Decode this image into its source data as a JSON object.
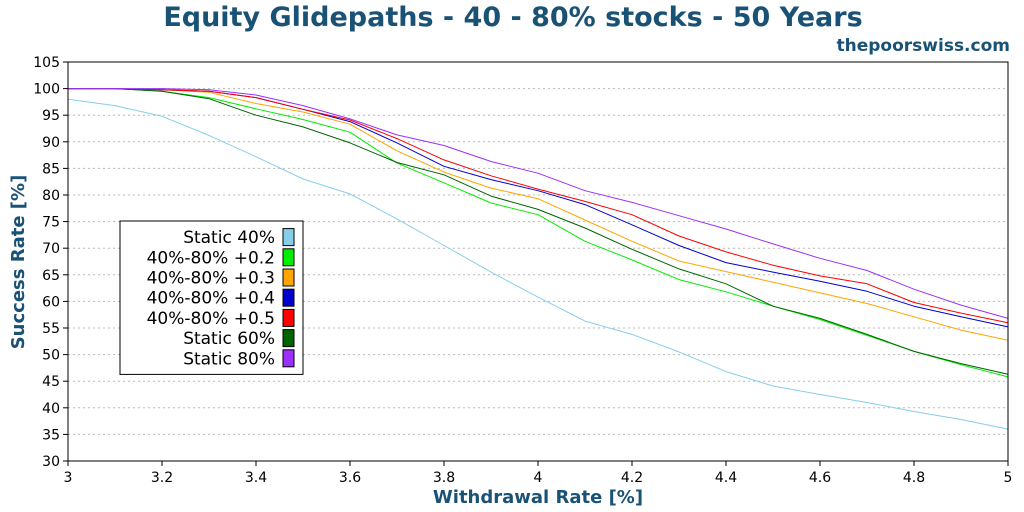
{
  "chart_data": {
    "type": "line",
    "title": "Equity Glidepaths - 40 - 80% stocks - 50 Years",
    "source": "thepoorswiss.com",
    "xlabel": "Withdrawal Rate [%]",
    "ylabel": "Success Rate [%]",
    "xlim": [
      3,
      5
    ],
    "ylim": [
      30,
      105
    ],
    "xticks": [
      3,
      3.2,
      3.4,
      3.6,
      3.8,
      4,
      4.2,
      4.4,
      4.6,
      4.8,
      5
    ],
    "xtick_labels": [
      "3",
      "3.2",
      "3.4",
      "3.6",
      "3.8",
      "4",
      "4.2",
      "4.4",
      "4.6",
      "4.8",
      "5"
    ],
    "yticks": [
      30,
      35,
      40,
      45,
      50,
      55,
      60,
      65,
      70,
      75,
      80,
      85,
      90,
      95,
      100,
      105
    ],
    "ytick_labels": [
      "30",
      "35",
      "40",
      "45",
      "50",
      "55",
      "60",
      "65",
      "70",
      "75",
      "80",
      "85",
      "90",
      "95",
      "100",
      "105"
    ],
    "grid": "horizontal dotted",
    "legend_position": "center-left",
    "x": [
      3.0,
      3.1,
      3.2,
      3.3,
      3.4,
      3.5,
      3.6,
      3.7,
      3.8,
      3.9,
      4.0,
      4.1,
      4.2,
      4.3,
      4.4,
      4.5,
      4.6,
      4.7,
      4.8,
      4.9,
      5.0
    ],
    "series": [
      {
        "name": "Static 40%",
        "color": "#87ceeb",
        "values": [
          98,
          96.8,
          94.8,
          91.2,
          87.2,
          83,
          80.2,
          75.5,
          70.5,
          65.5,
          60.8,
          56.3,
          53.8,
          50.5,
          46.8,
          44.1,
          42.5,
          41,
          39.3,
          37.8,
          36
        ]
      },
      {
        "name": "40%-80% +0.2",
        "color": "#00ee00",
        "values": [
          100,
          100,
          99.5,
          98.3,
          96.2,
          94.2,
          91.8,
          86,
          82.3,
          78.5,
          76.3,
          71.3,
          67.8,
          64.1,
          61.8,
          59.1,
          56.6,
          53.6,
          50.6,
          48.1,
          45.8
        ]
      },
      {
        "name": "40%-80% +0.3",
        "color": "#ffa500",
        "values": [
          100,
          100,
          99.8,
          99.3,
          97.2,
          95.6,
          93.3,
          88.3,
          84.3,
          81.3,
          79.3,
          75.3,
          71.3,
          67.6,
          65.6,
          63.6,
          61.6,
          59.6,
          57.1,
          54.6,
          52.7
        ]
      },
      {
        "name": "40%-80% +0.4",
        "color": "#0000cd",
        "values": [
          100,
          100,
          99.8,
          99.5,
          98.3,
          96.1,
          93.8,
          89.8,
          85.4,
          82.9,
          80.8,
          78.2,
          74.4,
          70.5,
          67.3,
          65.5,
          63.8,
          61.9,
          59.1,
          57.1,
          55.2
        ]
      },
      {
        "name": "40%-80% +0.5",
        "color": "#ff0000",
        "values": [
          100,
          100,
          99.8,
          99.5,
          98.3,
          96.1,
          94.1,
          90.6,
          86.6,
          83.6,
          81.1,
          78.8,
          76.3,
          72.3,
          69.3,
          66.8,
          64.8,
          63.3,
          59.8,
          57.8,
          56
        ]
      },
      {
        "name": "Static 60%",
        "color": "#006400",
        "values": [
          100,
          100,
          99.5,
          98.1,
          95,
          92.8,
          89.8,
          86.1,
          83.8,
          79.8,
          77.3,
          73.8,
          69.8,
          66.1,
          63.3,
          59.1,
          56.8,
          53.8,
          50.6,
          48.3,
          46.3
        ]
      },
      {
        "name": "Static 80%",
        "color": "#9b30ff",
        "values": [
          100,
          100,
          100,
          99.8,
          98.8,
          96.8,
          94.3,
          91.3,
          89.3,
          86.3,
          84.1,
          80.8,
          78.6,
          76.1,
          73.6,
          70.8,
          68.1,
          65.8,
          62.3,
          59.3,
          56.8
        ]
      }
    ]
  }
}
